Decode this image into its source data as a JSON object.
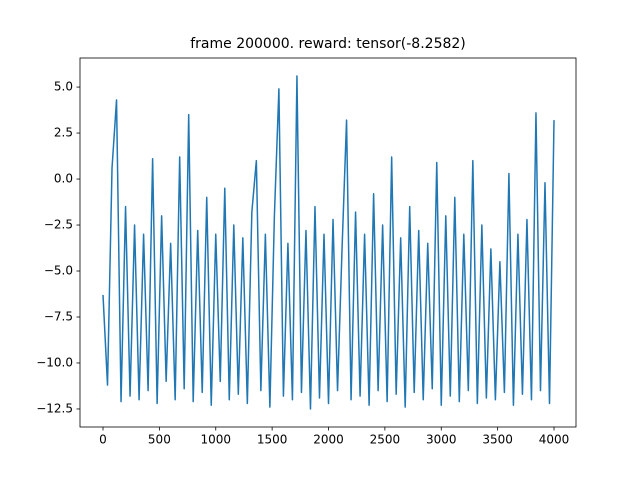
{
  "chart_data": {
    "type": "line",
    "title": "frame 200000. reward: tensor(-8.2582)",
    "x": [
      0,
      40,
      80,
      120,
      160,
      200,
      240,
      280,
      320,
      360,
      400,
      440,
      480,
      520,
      560,
      600,
      640,
      680,
      720,
      760,
      800,
      840,
      880,
      920,
      960,
      1000,
      1040,
      1080,
      1120,
      1160,
      1200,
      1240,
      1280,
      1320,
      1360,
      1400,
      1440,
      1480,
      1520,
      1560,
      1600,
      1640,
      1680,
      1720,
      1760,
      1800,
      1840,
      1880,
      1920,
      1960,
      2000,
      2040,
      2080,
      2120,
      2160,
      2200,
      2240,
      2280,
      2320,
      2360,
      2400,
      2440,
      2480,
      2520,
      2560,
      2600,
      2640,
      2680,
      2720,
      2760,
      2800,
      2840,
      2880,
      2920,
      2960,
      3000,
      3040,
      3080,
      3120,
      3160,
      3200,
      3240,
      3280,
      3320,
      3360,
      3400,
      3440,
      3480,
      3520,
      3560,
      3600,
      3640,
      3680,
      3720,
      3760,
      3800,
      3840,
      3880,
      3920,
      3960,
      4000
    ],
    "series": [
      {
        "color": "#1f77b4",
        "values": [
          -6.3,
          -11.2,
          0.6,
          4.3,
          -12.1,
          -1.5,
          -11.8,
          -2.5,
          -12.0,
          -3.0,
          -11.5,
          1.1,
          -12.2,
          -2.0,
          -11.0,
          -3.5,
          -12.0,
          1.2,
          -11.4,
          3.5,
          -12.1,
          -2.8,
          -11.6,
          -1.0,
          -12.3,
          -3.0,
          -11.0,
          -0.5,
          -12.0,
          -2.5,
          -11.7,
          -3.2,
          -12.2,
          -1.8,
          1.0,
          -11.5,
          -3.0,
          -12.4,
          -2.0,
          4.9,
          -11.8,
          -3.5,
          -12.0,
          5.6,
          -11.6,
          -2.8,
          -12.5,
          -1.5,
          -11.9,
          -3.0,
          -12.2,
          -2.2,
          -11.5,
          -3.8,
          3.2,
          -12.0,
          -1.8,
          -11.8,
          -3.0,
          -12.3,
          -0.8,
          -11.5,
          -2.5,
          -12.1,
          1.2,
          -11.7,
          -3.2,
          -12.4,
          -1.5,
          -11.6,
          -2.8,
          -12.0,
          -3.5,
          -11.4,
          0.9,
          -12.3,
          -2.0,
          -11.8,
          -1.0,
          -12.1,
          -3.0,
          -11.5,
          1.0,
          -12.2,
          -2.5,
          -11.9,
          -3.8,
          -12.0,
          -4.5,
          -11.6,
          0.3,
          -12.3,
          -3.0,
          -11.7,
          -2.2,
          -12.0,
          3.6,
          -11.5,
          -0.2,
          -12.2,
          3.2
        ]
      }
    ],
    "xlim": [
      -204,
      4195
    ],
    "ylim": [
      -13.48,
      6.58
    ],
    "xticks": [
      0,
      500,
      1000,
      1500,
      2000,
      2500,
      3000,
      3500,
      4000
    ],
    "yticks": [
      {
        "value": -12.5,
        "label": "−12.5"
      },
      {
        "value": -10,
        "label": "−10.0"
      },
      {
        "value": -7.5,
        "label": "−7.5"
      },
      {
        "value": -5,
        "label": "−5.0"
      },
      {
        "value": -2.5,
        "label": "−2.5"
      },
      {
        "value": 0,
        "label": "0.0"
      },
      {
        "value": 2.5,
        "label": "2.5"
      },
      {
        "value": 5,
        "label": "5.0"
      }
    ]
  }
}
